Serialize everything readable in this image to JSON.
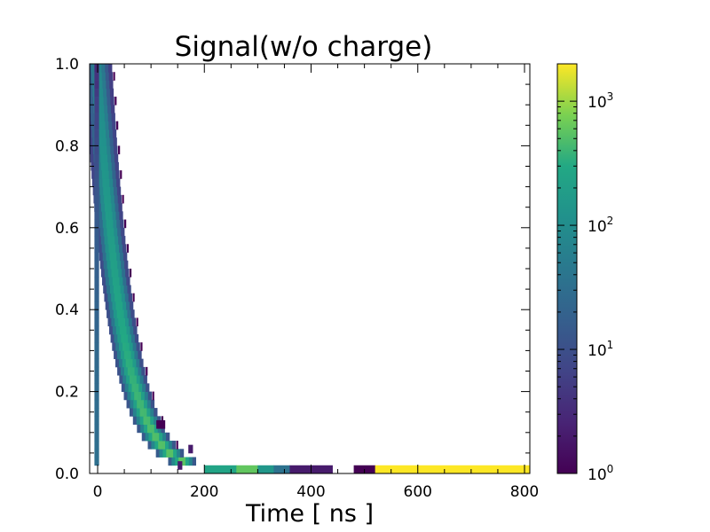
{
  "chart_data": {
    "type": "heatmap",
    "title": "Signal(w/o charge)",
    "xlabel": "Time [ ns ]",
    "ylabel": "",
    "xlim": [
      -15,
      810
    ],
    "ylim": [
      0,
      1
    ],
    "x_ticks": [
      0,
      200,
      400,
      600,
      800
    ],
    "x_tick_labels": [
      "0",
      "200",
      "400",
      "600",
      "800"
    ],
    "y_ticks": [
      0.0,
      0.2,
      0.4,
      0.6,
      0.8,
      1.0
    ],
    "y_tick_labels": [
      "0.0",
      "0.2",
      "0.4",
      "0.6",
      "0.8",
      "1.0"
    ],
    "colorbar": {
      "scale": "log",
      "colormap": "viridis",
      "range": [
        1,
        2000
      ],
      "ticks": [
        1,
        10,
        100,
        1000
      ],
      "tick_base": "10",
      "tick_exponents": [
        "0",
        "1",
        "2",
        "3"
      ]
    },
    "distribution": {
      "model": "decay-ridge",
      "peak_x": 0,
      "decay_tau_ns": 45,
      "rise_width_ns": 4,
      "baseline_bins": [
        {
          "x0": 200,
          "x1": 260,
          "count": 250
        },
        {
          "x0": 260,
          "x1": 300,
          "count": 600
        },
        {
          "x0": 300,
          "x1": 330,
          "count": 150
        },
        {
          "x0": 330,
          "x1": 360,
          "count": 35
        },
        {
          "x0": 360,
          "x1": 440,
          "count": 2
        },
        {
          "x0": 480,
          "x1": 520,
          "count": 1
        },
        {
          "x0": 520,
          "x1": 810,
          "count": 2000
        }
      ]
    },
    "grid": false
  }
}
